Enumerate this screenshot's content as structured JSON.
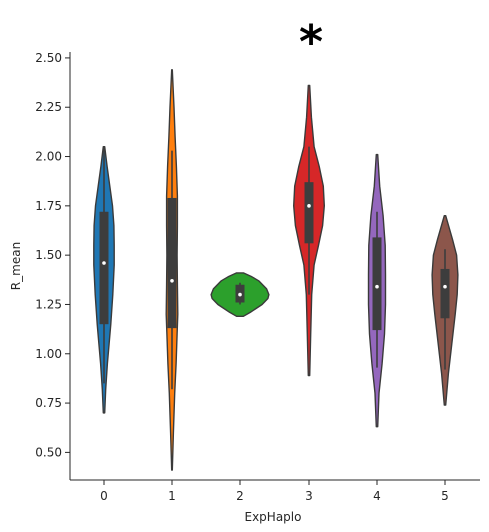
{
  "chart_data": {
    "type": "violin",
    "title": "",
    "xlabel": "ExpHaplo",
    "ylabel": "R_mean",
    "categories": [
      "0",
      "1",
      "2",
      "3",
      "4",
      "5"
    ],
    "ylim": [
      0.36,
      2.53
    ],
    "yticks": [
      0.5,
      0.75,
      1.0,
      1.25,
      1.5,
      1.75,
      2.0,
      2.25,
      2.5
    ],
    "ytick_labels": [
      "0.50",
      "0.75",
      "1.00",
      "1.25",
      "1.50",
      "1.75",
      "2.00",
      "2.25",
      "2.50"
    ],
    "grid": false,
    "annotation": {
      "text": "*",
      "category": "3"
    },
    "violins": [
      {
        "category": "0",
        "color": "#1f77b4",
        "min": 0.7,
        "max": 2.05,
        "q1": 1.15,
        "median": 1.46,
        "q3": 1.72,
        "whisker_low": 0.85,
        "whisker_high": 2.05,
        "profile": [
          [
            0.7,
            0.02
          ],
          [
            0.82,
            0.05
          ],
          [
            0.95,
            0.1
          ],
          [
            1.05,
            0.15
          ],
          [
            1.15,
            0.2
          ],
          [
            1.3,
            0.26
          ],
          [
            1.45,
            0.3
          ],
          [
            1.55,
            0.3
          ],
          [
            1.65,
            0.29
          ],
          [
            1.75,
            0.25
          ],
          [
            1.85,
            0.17
          ],
          [
            1.95,
            0.09
          ],
          [
            2.05,
            0.02
          ]
        ]
      },
      {
        "category": "1",
        "color": "#ff7f0e",
        "min": 0.41,
        "max": 2.44,
        "q1": 1.13,
        "median": 1.37,
        "q3": 1.79,
        "whisker_low": 0.82,
        "whisker_high": 2.03,
        "profile": [
          [
            0.41,
            0.01
          ],
          [
            0.6,
            0.04
          ],
          [
            0.8,
            0.08
          ],
          [
            0.95,
            0.12
          ],
          [
            1.1,
            0.15
          ],
          [
            1.2,
            0.17
          ],
          [
            1.35,
            0.16
          ],
          [
            1.5,
            0.15
          ],
          [
            1.65,
            0.16
          ],
          [
            1.8,
            0.16
          ],
          [
            1.95,
            0.13
          ],
          [
            2.1,
            0.09
          ],
          [
            2.25,
            0.06
          ],
          [
            2.44,
            0.01
          ]
        ]
      },
      {
        "category": "2",
        "color": "#2ca02c",
        "min": 1.19,
        "max": 1.41,
        "q1": 1.26,
        "median": 1.3,
        "q3": 1.35,
        "whisker_low": 1.25,
        "whisker_high": 1.36,
        "profile": [
          [
            1.19,
            0.1
          ],
          [
            1.21,
            0.3
          ],
          [
            1.25,
            0.65
          ],
          [
            1.28,
            0.82
          ],
          [
            1.3,
            0.85
          ],
          [
            1.33,
            0.78
          ],
          [
            1.37,
            0.55
          ],
          [
            1.39,
            0.35
          ],
          [
            1.41,
            0.1
          ]
        ]
      },
      {
        "category": "3",
        "color": "#d62728",
        "min": 0.89,
        "max": 2.36,
        "q1": 1.56,
        "median": 1.75,
        "q3": 1.87,
        "whisker_low": 1.3,
        "whisker_high": 2.05,
        "profile": [
          [
            0.89,
            0.02
          ],
          [
            1.1,
            0.05
          ],
          [
            1.3,
            0.08
          ],
          [
            1.45,
            0.15
          ],
          [
            1.55,
            0.28
          ],
          [
            1.65,
            0.4
          ],
          [
            1.75,
            0.45
          ],
          [
            1.85,
            0.42
          ],
          [
            1.95,
            0.3
          ],
          [
            2.05,
            0.15
          ],
          [
            2.2,
            0.07
          ],
          [
            2.36,
            0.02
          ]
        ]
      },
      {
        "category": "4",
        "color": "#9467bd",
        "min": 0.63,
        "max": 2.01,
        "q1": 1.12,
        "median": 1.34,
        "q3": 1.59,
        "whisker_low": 0.93,
        "whisker_high": 1.72,
        "profile": [
          [
            0.63,
            0.02
          ],
          [
            0.8,
            0.06
          ],
          [
            0.95,
            0.15
          ],
          [
            1.1,
            0.22
          ],
          [
            1.25,
            0.25
          ],
          [
            1.4,
            0.25
          ],
          [
            1.55,
            0.24
          ],
          [
            1.7,
            0.18
          ],
          [
            1.85,
            0.08
          ],
          [
            2.01,
            0.02
          ]
        ]
      },
      {
        "category": "5",
        "color": "#8c564b",
        "min": 0.74,
        "max": 1.7,
        "q1": 1.18,
        "median": 1.34,
        "q3": 1.43,
        "whisker_low": 0.92,
        "whisker_high": 1.53,
        "profile": [
          [
            0.74,
            0.02
          ],
          [
            0.9,
            0.1
          ],
          [
            1.05,
            0.2
          ],
          [
            1.2,
            0.3
          ],
          [
            1.3,
            0.36
          ],
          [
            1.4,
            0.38
          ],
          [
            1.5,
            0.34
          ],
          [
            1.58,
            0.22
          ],
          [
            1.7,
            0.02
          ]
        ]
      }
    ]
  }
}
